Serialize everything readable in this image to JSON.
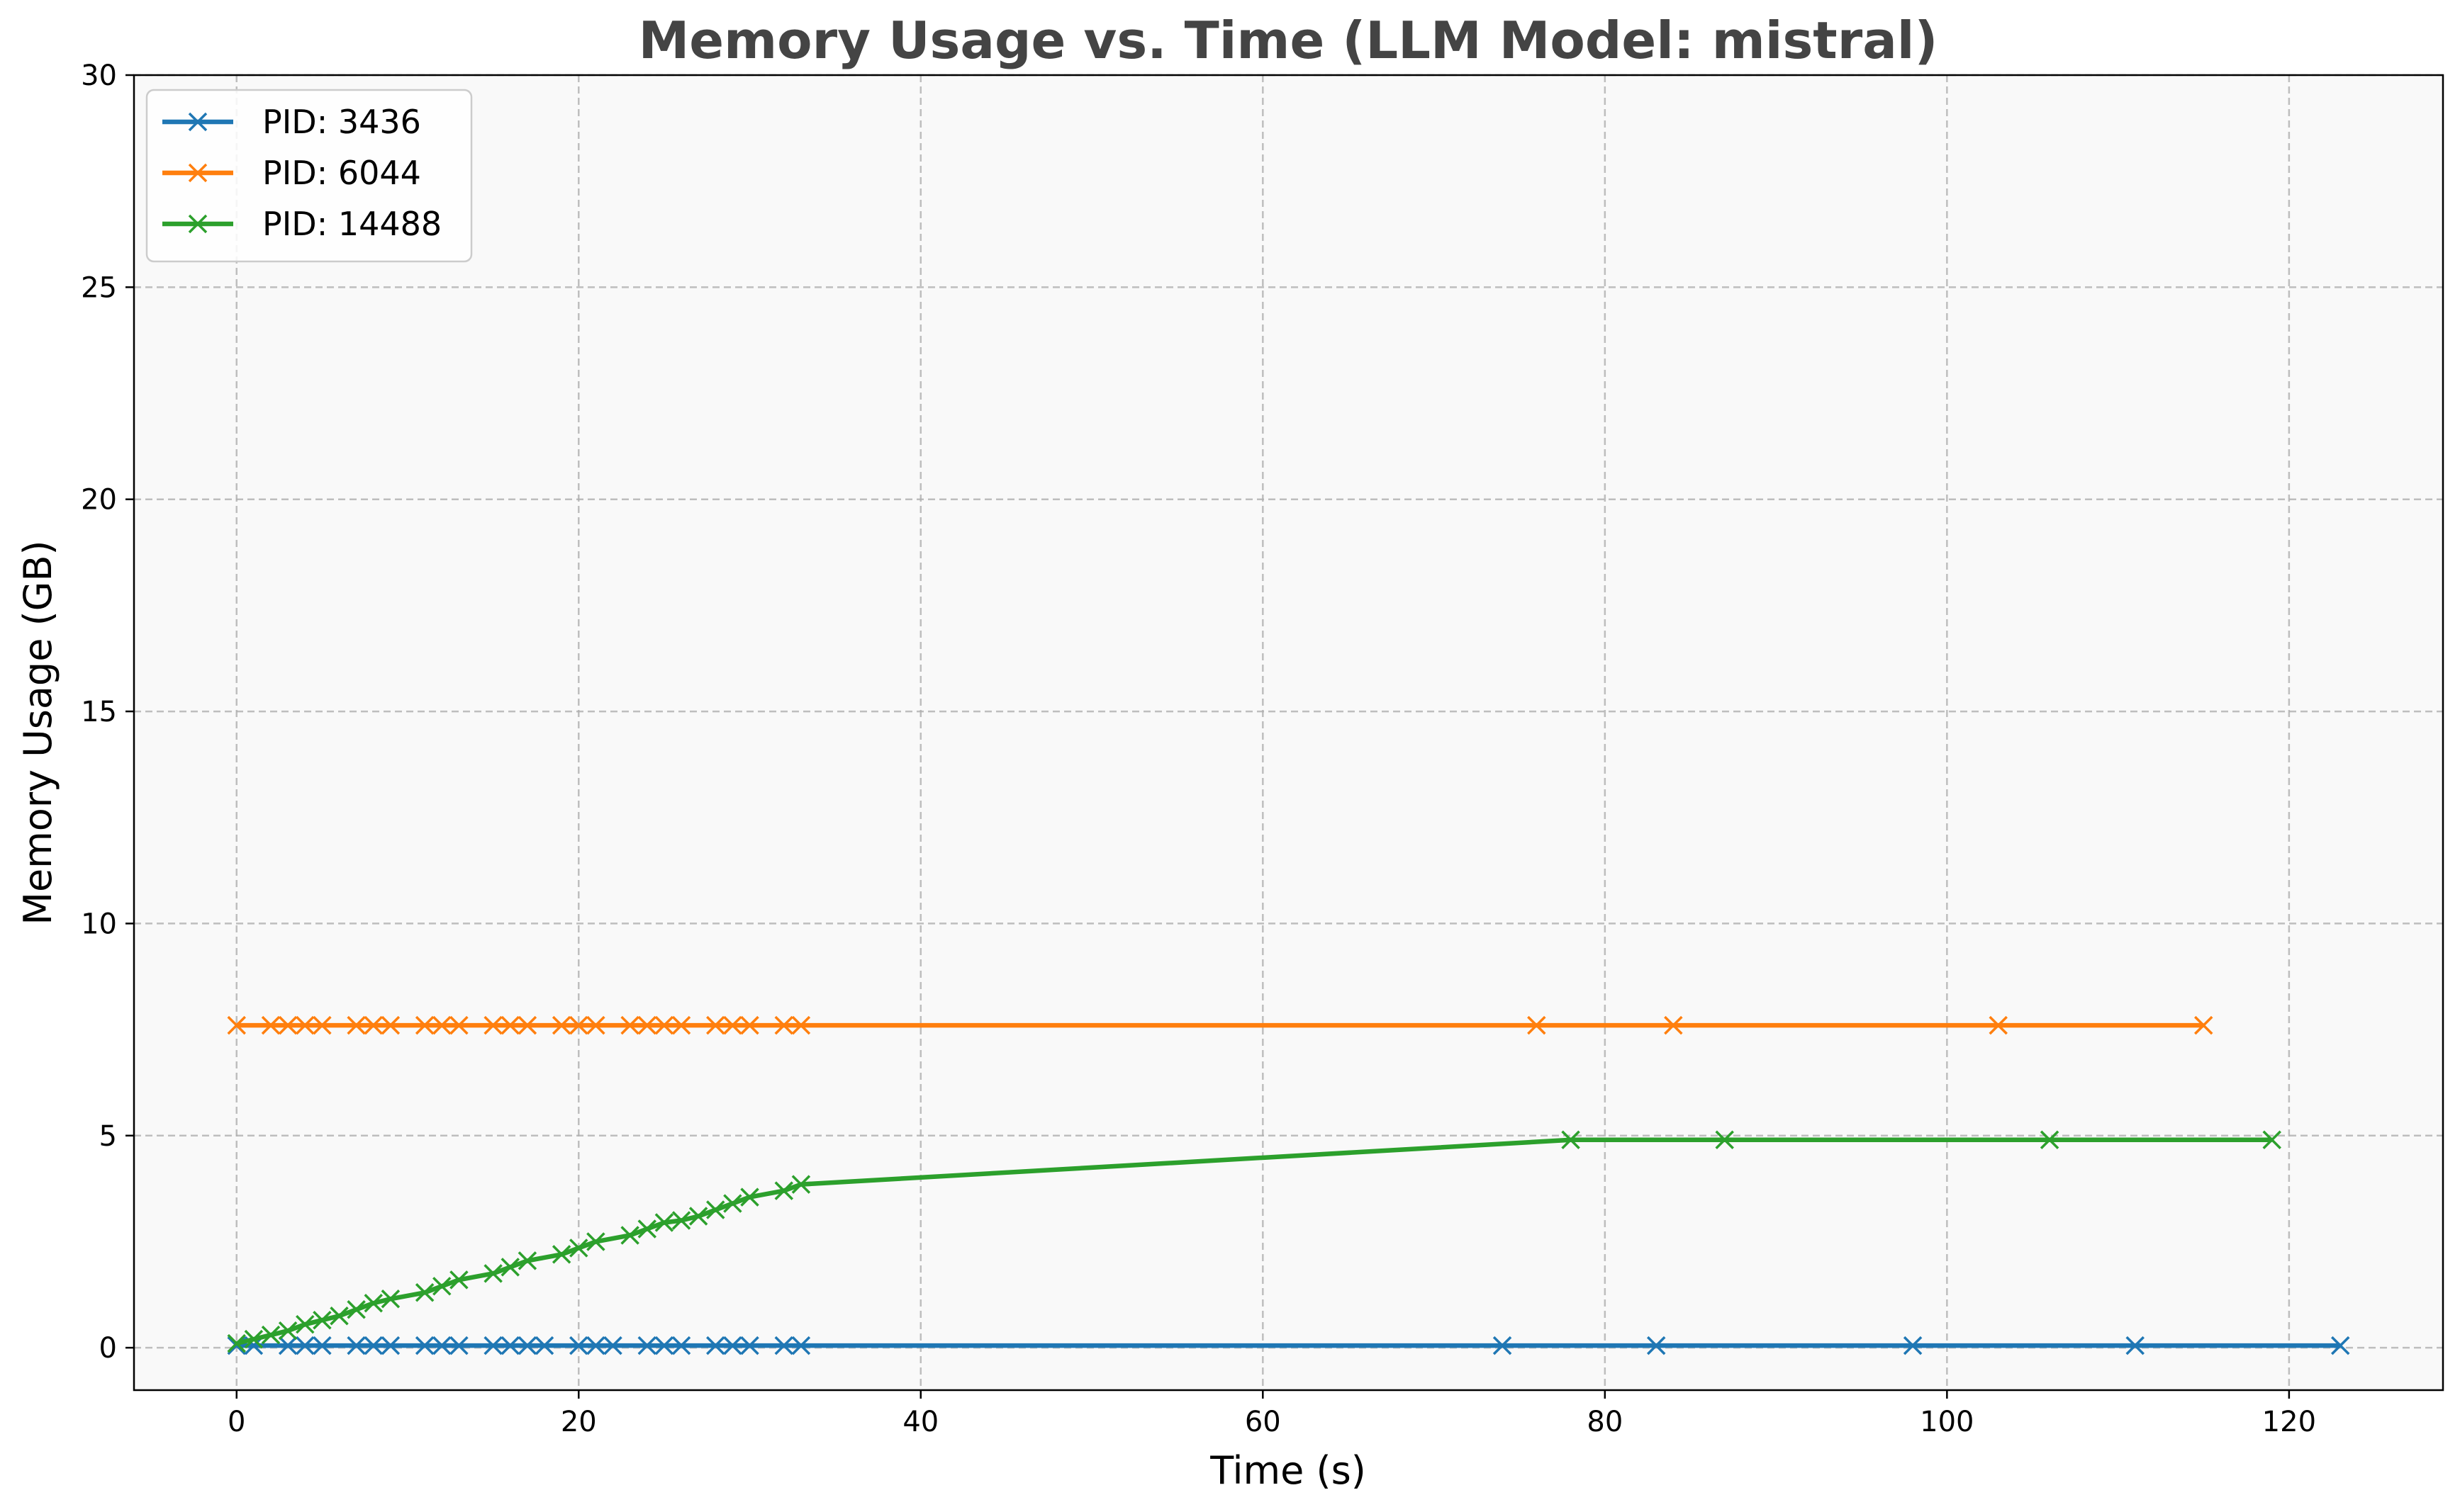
{
  "chart_data": {
    "type": "line",
    "title": "Memory Usage vs. Time (LLM Model: mistral)",
    "xlabel": "Time (s)",
    "ylabel": "Memory Usage (GB)",
    "xlim": [
      -6,
      129
    ],
    "ylim": [
      -1,
      30
    ],
    "xticks": [
      0,
      20,
      40,
      60,
      80,
      100,
      120
    ],
    "yticks": [
      0,
      5,
      10,
      15,
      20,
      25,
      30
    ],
    "grid": true,
    "legend_position": "top-left",
    "marker": "x",
    "plot_background": "#f9f9f9",
    "series": [
      {
        "name": "PID: 3436",
        "color": "#1f77b4",
        "x": [
          0,
          1,
          3,
          4,
          5,
          7,
          8,
          9,
          11,
          12,
          13,
          15,
          16,
          17,
          18,
          20,
          21,
          22,
          24,
          25,
          26,
          28,
          29,
          30,
          32,
          33,
          74,
          83,
          98,
          111,
          123
        ],
        "y": [
          0.05,
          0.05,
          0.05,
          0.05,
          0.05,
          0.05,
          0.05,
          0.05,
          0.05,
          0.05,
          0.05,
          0.05,
          0.05,
          0.05,
          0.05,
          0.05,
          0.05,
          0.05,
          0.05,
          0.05,
          0.05,
          0.05,
          0.05,
          0.05,
          0.05,
          0.05,
          0.05,
          0.05,
          0.05,
          0.05,
          0.05
        ]
      },
      {
        "name": "PID: 6044",
        "color": "#ff7f0e",
        "x": [
          0,
          2,
          3,
          4,
          5,
          7,
          8,
          9,
          11,
          12,
          13,
          15,
          16,
          17,
          19,
          20,
          21,
          23,
          24,
          25,
          26,
          28,
          29,
          30,
          32,
          33,
          76,
          84,
          103,
          115
        ],
        "y": [
          7.6,
          7.6,
          7.6,
          7.6,
          7.6,
          7.6,
          7.6,
          7.6,
          7.6,
          7.6,
          7.6,
          7.6,
          7.6,
          7.6,
          7.6,
          7.6,
          7.6,
          7.6,
          7.6,
          7.6,
          7.6,
          7.6,
          7.6,
          7.6,
          7.6,
          7.6,
          7.6,
          7.6,
          7.6,
          7.6
        ]
      },
      {
        "name": "PID: 14488",
        "color": "#2ca02c",
        "x": [
          0,
          1,
          2,
          3,
          4,
          5,
          6,
          7,
          8,
          9,
          11,
          12,
          13,
          15,
          16,
          17,
          19,
          20,
          21,
          23,
          24,
          25,
          26,
          27,
          28,
          29,
          30,
          32,
          33,
          78,
          87,
          106,
          119
        ],
        "y": [
          0.1,
          0.2,
          0.3,
          0.4,
          0.55,
          0.65,
          0.75,
          0.9,
          1.05,
          1.15,
          1.3,
          1.45,
          1.6,
          1.75,
          1.9,
          2.05,
          2.2,
          2.35,
          2.5,
          2.65,
          2.8,
          2.95,
          3.0,
          3.1,
          3.25,
          3.4,
          3.55,
          3.7,
          3.85,
          4.9,
          4.9,
          4.9,
          4.9
        ]
      }
    ]
  }
}
